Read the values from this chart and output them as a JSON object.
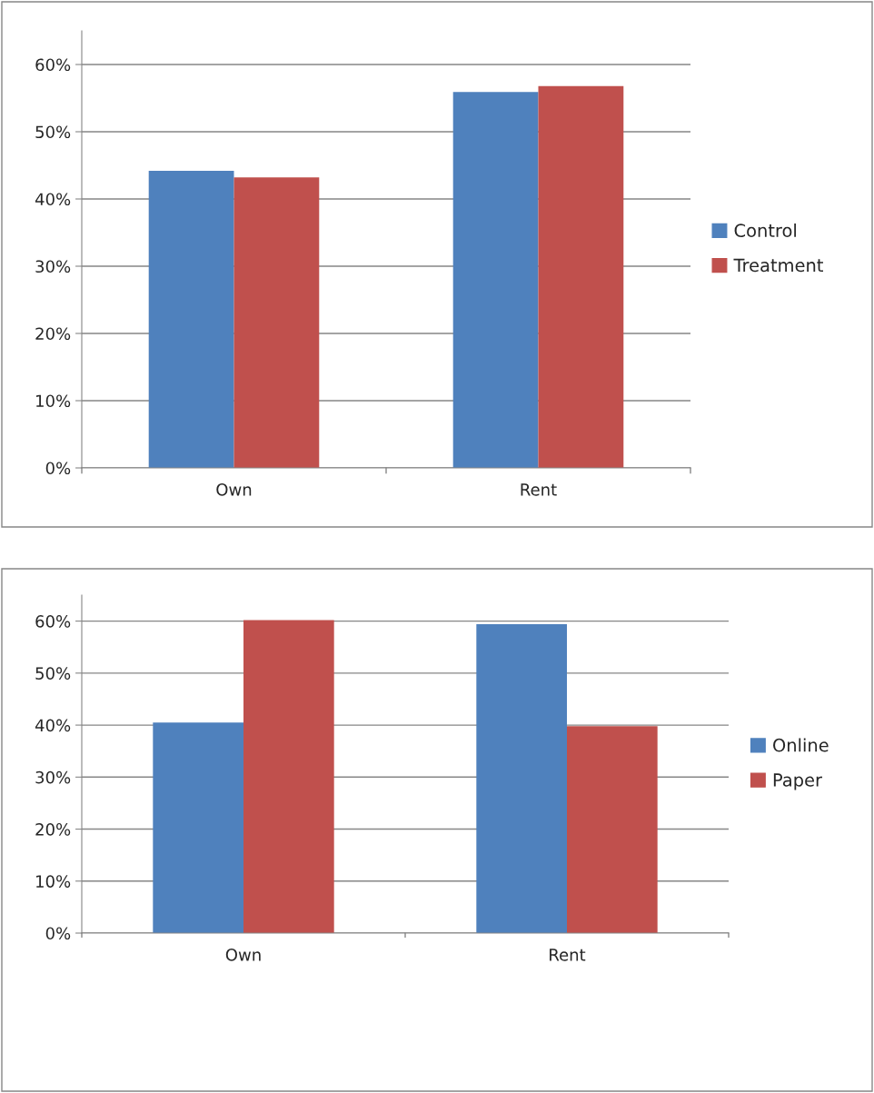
{
  "chart_data": [
    {
      "type": "bar",
      "categories": [
        "Own",
        "Rent"
      ],
      "series": [
        {
          "name": "Control",
          "color": "#4f81bd",
          "values": [
            44.2,
            55.9
          ]
        },
        {
          "name": "Treatment",
          "color": "#c0504d",
          "values": [
            43.2,
            56.8
          ]
        }
      ],
      "ylim": [
        0,
        65
      ],
      "yticks": [
        {
          "value": 0,
          "label": "0%"
        },
        {
          "value": 10,
          "label": "10%"
        },
        {
          "value": 20,
          "label": "20%"
        },
        {
          "value": 30,
          "label": "30%"
        },
        {
          "value": 40,
          "label": "40%"
        },
        {
          "value": 50,
          "label": "50%"
        },
        {
          "value": 60,
          "label": "60%"
        }
      ],
      "grid": "y",
      "legend": "right"
    },
    {
      "type": "bar",
      "categories": [
        "Own",
        "Rent"
      ],
      "series": [
        {
          "name": "Online",
          "color": "#4f81bd",
          "values": [
            40.5,
            59.4
          ]
        },
        {
          "name": "Paper",
          "color": "#c0504d",
          "values": [
            60.2,
            39.8
          ]
        }
      ],
      "ylim": [
        0,
        65
      ],
      "yticks": [
        {
          "value": 0,
          "label": "0%"
        },
        {
          "value": 10,
          "label": "10%"
        },
        {
          "value": 20,
          "label": "20%"
        },
        {
          "value": 30,
          "label": "30%"
        },
        {
          "value": 40,
          "label": "40%"
        },
        {
          "value": 50,
          "label": "50%"
        },
        {
          "value": 60,
          "label": "60%"
        }
      ],
      "grid": "y",
      "legend": "right"
    }
  ]
}
